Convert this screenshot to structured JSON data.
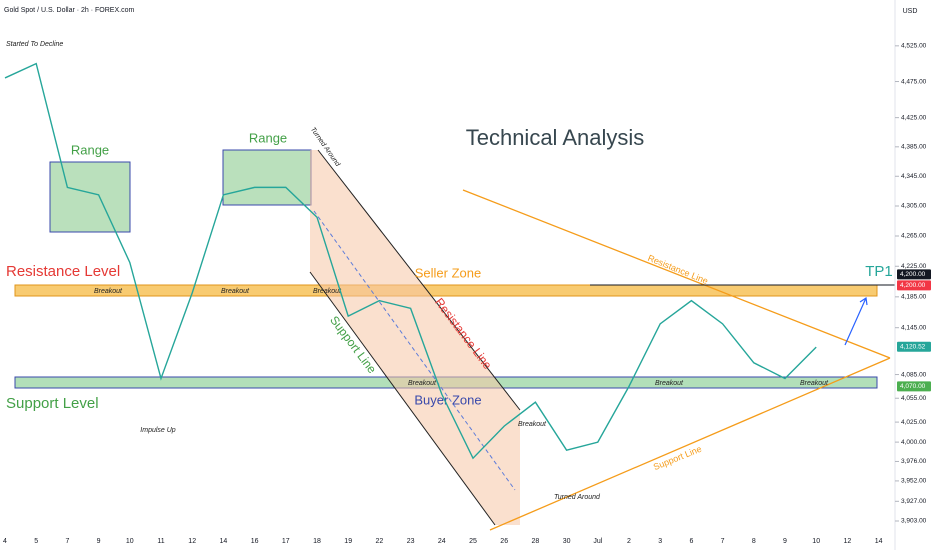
{
  "chart_data": {
    "type": "line",
    "log": true,
    "grid": false,
    "title": "Gold Spot / U.S. Dollar · 2h · FOREX.com",
    "currency": "USD",
    "color": "#26a69a",
    "categories": [
      "4",
      "5",
      "7",
      "9",
      "10",
      "11",
      "12",
      "14",
      "16",
      "17",
      "18",
      "19",
      "22",
      "23",
      "24",
      "25",
      "26",
      "28",
      "30",
      "Jul",
      "2",
      "3",
      "6",
      "7",
      "8",
      "9",
      "10",
      "12",
      "14"
    ],
    "values": [
      4480,
      4500,
      4330,
      4320,
      4230,
      4080,
      4190,
      4320,
      4330,
      4330,
      4290,
      4160,
      4180,
      4170,
      4060,
      3980,
      4020,
      4050,
      3990,
      4000,
      4070,
      4150,
      4180,
      4150,
      4100,
      4080,
      4120,
      null,
      null
    ],
    "ylim": [
      3880,
      4590
    ],
    "yticks": [
      {
        "value": 4525,
        "label": "4,525.00"
      },
      {
        "value": 4475,
        "label": "4,475.00"
      },
      {
        "value": 4425,
        "label": "4,425.00"
      },
      {
        "value": 4385,
        "label": "4,385.00"
      },
      {
        "value": 4345,
        "label": "4,345.00"
      },
      {
        "value": 4305,
        "label": "4,305.00"
      },
      {
        "value": 4265,
        "label": "4,265.00"
      },
      {
        "value": 4225,
        "label": "4,225.00"
      },
      {
        "value": 4185,
        "label": "4,185.00"
      },
      {
        "value": 4145,
        "label": "4,145.00"
      },
      {
        "value": 4085,
        "label": "4,085.00"
      },
      {
        "value": 4055,
        "label": "4,055.00"
      },
      {
        "value": 4025,
        "label": "4,025.00"
      },
      {
        "value": 4000,
        "label": "4,000.00"
      },
      {
        "value": 3976,
        "label": "3,976.00"
      },
      {
        "value": 3952,
        "label": "3,952.00"
      },
      {
        "value": 3927,
        "label": "3,927.00"
      },
      {
        "value": 3903,
        "label": "3,903.00"
      }
    ],
    "price_tags": [
      {
        "value": 4200,
        "label": "4,200.00",
        "color": "#131722"
      },
      {
        "value": 4200,
        "label": "4,200.00",
        "color": "#f23645"
      },
      {
        "value": 4120.52,
        "label": "4,120.52",
        "color": "#26a69a"
      },
      {
        "value": 4070,
        "label": "4,070.00",
        "color": "#4caf50"
      }
    ],
    "annotations": [
      "Started To Decline",
      "Range",
      "Range",
      "Turned Around",
      "Technical Analysis",
      "Resistance Level",
      "Seller Zone",
      "Breakout",
      "Breakout",
      "Breakout",
      "Resistance Line",
      "Support Line",
      "Breakout",
      "Breakout",
      "Breakout",
      "Buyer Zone",
      "Support Level",
      "Impulse Up",
      "Breakout",
      "Turned Around",
      "Resistance Line",
      "Support Line",
      "TP1"
    ]
  }
}
